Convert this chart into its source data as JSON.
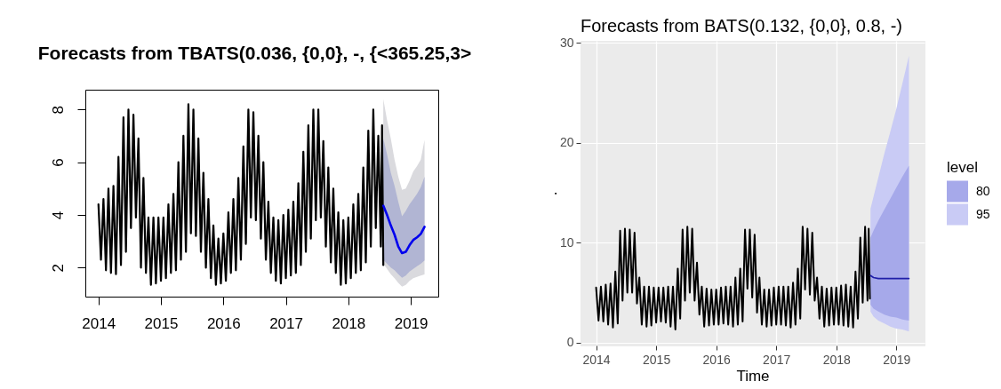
{
  "chart_data": [
    {
      "type": "line",
      "title": "Forecasts from TBATS(0.036, {0,0}, -, {<365.25,3>",
      "xlim": [
        2013.79,
        2019.44
      ],
      "xticks": [
        2014,
        2015,
        2016,
        2017,
        2018,
        2019
      ],
      "ylim": [
        0.9,
        8.75
      ],
      "yticks": [
        2,
        4,
        6,
        8
      ],
      "grid": false,
      "series": [
        {
          "type": "line",
          "color": "#000000",
          "x": [
            2014,
            2014.04,
            2014.08,
            2014.12,
            2014.16,
            2014.2,
            2014.24,
            2014.28,
            2014.32,
            2014.36,
            2014.4,
            2014.44,
            2014.48,
            2014.52,
            2014.56,
            2014.6,
            2014.64,
            2014.68,
            2014.72,
            2014.76,
            2014.8,
            2014.84,
            2014.88,
            2014.92,
            2014.96,
            2015,
            2015.04,
            2015.08,
            2015.12,
            2015.16,
            2015.2,
            2015.24,
            2015.28,
            2015.32,
            2015.36,
            2015.4,
            2015.44,
            2015.48,
            2015.52,
            2015.56,
            2015.6,
            2015.64,
            2015.68,
            2015.72,
            2015.76,
            2015.8,
            2015.84,
            2015.88,
            2015.92,
            2015.96,
            2016,
            2016.04,
            2016.08,
            2016.12,
            2016.16,
            2016.2,
            2016.24,
            2016.28,
            2016.32,
            2016.36,
            2016.4,
            2016.44,
            2016.48,
            2016.52,
            2016.56,
            2016.6,
            2016.64,
            2016.68,
            2016.72,
            2016.76,
            2016.8,
            2016.84,
            2016.88,
            2016.92,
            2016.96,
            2017,
            2017.04,
            2017.08,
            2017.12,
            2017.16,
            2017.2,
            2017.24,
            2017.28,
            2017.32,
            2017.36,
            2017.4,
            2017.44,
            2017.48,
            2017.52,
            2017.56,
            2017.6,
            2017.64,
            2017.68,
            2017.72,
            2017.76,
            2017.8,
            2017.84,
            2017.88,
            2017.92,
            2017.96,
            2018,
            2018.04,
            2018.08,
            2018.12,
            2018.16,
            2018.2,
            2018.24,
            2018.28,
            2018.32,
            2018.36,
            2018.4,
            2018.44,
            2018.48,
            2018.52,
            2018.54,
            2018.56
          ],
          "values": [
            4.4,
            2.3,
            4.6,
            1.9,
            5.0,
            1.8,
            5.1,
            1.75,
            6.2,
            2.1,
            7.7,
            2.6,
            8.0,
            3.5,
            7.8,
            3.9,
            6.9,
            2.0,
            5.4,
            1.8,
            3.9,
            1.35,
            3.9,
            1.4,
            3.9,
            1.5,
            3.9,
            1.6,
            4.4,
            1.8,
            4.8,
            1.9,
            6.0,
            2.3,
            7.0,
            2.6,
            8.2,
            3.3,
            8.0,
            3.2,
            6.9,
            2.6,
            5.6,
            2.0,
            4.6,
            1.6,
            3.6,
            1.35,
            3.1,
            1.4,
            3.3,
            1.5,
            4.1,
            1.8,
            4.6,
            1.9,
            5.4,
            2.3,
            6.6,
            2.9,
            8.0,
            3.9,
            7.9,
            3.8,
            7.0,
            3.1,
            6.0,
            2.3,
            4.5,
            1.8,
            3.9,
            1.5,
            3.8,
            1.4,
            4.0,
            1.6,
            4.2,
            1.7,
            4.5,
            1.8,
            5.2,
            2.1,
            6.4,
            2.6,
            7.4,
            3.1,
            8.0,
            3.8,
            8.0,
            3.9,
            6.8,
            2.8,
            5.8,
            2.2,
            5.0,
            1.8,
            4.1,
            1.35,
            3.8,
            1.4,
            3.9,
            1.6,
            4.4,
            1.8,
            4.8,
            1.9,
            5.8,
            2.2,
            7.2,
            2.8,
            8.0,
            3.5,
            7.0,
            2.8,
            7.4,
            2.1
          ]
        },
        {
          "type": "line",
          "color": "#0000ee",
          "x": [
            2018.56,
            2018.62,
            2018.68,
            2018.74,
            2018.8,
            2018.86,
            2018.92,
            2018.98,
            2019.04,
            2019.1,
            2019.16,
            2019.22
          ],
          "values": [
            4.35,
            4.0,
            3.6,
            3.25,
            2.8,
            2.55,
            2.6,
            2.85,
            3.05,
            3.15,
            3.28,
            3.55
          ]
        },
        {
          "type": "line",
          "color": "#b1b5d3",
          "x": [
            2018.56,
            2018.62,
            2018.68,
            2018.74,
            2018.8,
            2018.86,
            2018.92,
            2018.98,
            2019.04,
            2019.1,
            2019.16,
            2019.22
          ],
          "values": [
            null,
            null,
            null,
            null,
            null,
            null,
            null,
            null,
            null,
            null,
            null,
            null
          ],
          "lower": [
            2.3,
            2.15,
            2.0,
            1.9,
            1.75,
            1.62,
            1.7,
            1.85,
            1.95,
            2.05,
            2.15,
            2.27
          ],
          "upper": [
            6.9,
            6.3,
            5.6,
            5.1,
            4.5,
            3.95,
            4.15,
            4.4,
            4.6,
            4.8,
            5.05,
            5.45
          ]
        },
        {
          "type": "line",
          "color": "#dadade",
          "x": [
            2018.56,
            2018.62,
            2018.68,
            2018.74,
            2018.8,
            2018.86,
            2018.92,
            2018.98,
            2019.04,
            2019.1,
            2019.16,
            2019.22
          ],
          "values": [
            null,
            null,
            null,
            null,
            null,
            null,
            null,
            null,
            null,
            null,
            null,
            null
          ],
          "lower": [
            2.15,
            1.95,
            1.75,
            1.6,
            1.42,
            1.28,
            1.35,
            1.5,
            1.6,
            1.65,
            1.7,
            1.74
          ],
          "upper": [
            8.4,
            7.6,
            6.9,
            6.1,
            5.45,
            4.95,
            5.0,
            5.3,
            5.65,
            5.85,
            6.1,
            6.85
          ]
        }
      ]
    },
    {
      "type": "line",
      "title": "Forecasts from BATS(0.132, {0,0}, 0.8, -)",
      "xlabel": "Time",
      "ylabel": ".",
      "legend_title": "level",
      "legend": "right",
      "grid": true,
      "xlim": [
        2013.74,
        2019.47
      ],
      "xticks": [
        2014,
        2015,
        2016,
        2017,
        2018,
        2019
      ],
      "ylim": [
        -0.3,
        30.2
      ],
      "yticks": [
        0,
        10,
        20,
        30
      ],
      "series": [
        {
          "type": "line",
          "color": "#000000",
          "x": [
            2014,
            2014.04,
            2014.08,
            2014.12,
            2014.16,
            2014.2,
            2014.24,
            2014.28,
            2014.32,
            2014.36,
            2014.4,
            2014.44,
            2014.48,
            2014.52,
            2014.56,
            2014.6,
            2014.64,
            2014.68,
            2014.72,
            2014.76,
            2014.8,
            2014.84,
            2014.88,
            2014.92,
            2014.96,
            2015,
            2015.04,
            2015.08,
            2015.12,
            2015.16,
            2015.2,
            2015.24,
            2015.28,
            2015.32,
            2015.36,
            2015.4,
            2015.44,
            2015.48,
            2015.52,
            2015.56,
            2015.6,
            2015.64,
            2015.68,
            2015.72,
            2015.76,
            2015.8,
            2015.84,
            2015.88,
            2015.92,
            2015.96,
            2016,
            2016.04,
            2016.08,
            2016.12,
            2016.16,
            2016.2,
            2016.24,
            2016.28,
            2016.32,
            2016.36,
            2016.4,
            2016.44,
            2016.48,
            2016.52,
            2016.56,
            2016.6,
            2016.64,
            2016.68,
            2016.72,
            2016.76,
            2016.8,
            2016.84,
            2016.88,
            2016.92,
            2016.96,
            2017,
            2017.04,
            2017.08,
            2017.12,
            2017.16,
            2017.2,
            2017.24,
            2017.28,
            2017.32,
            2017.36,
            2017.4,
            2017.44,
            2017.48,
            2017.52,
            2017.56,
            2017.6,
            2017.64,
            2017.68,
            2017.72,
            2017.76,
            2017.8,
            2017.84,
            2017.88,
            2017.92,
            2017.96,
            2018,
            2018.04,
            2018.08,
            2018.12,
            2018.16,
            2018.2,
            2018.24,
            2018.28,
            2018.32,
            2018.36,
            2018.4,
            2018.44,
            2018.48,
            2018.52,
            2018.54,
            2018.56
          ],
          "values": [
            5.5,
            2.2,
            5.6,
            2.1,
            5.8,
            1.8,
            5.9,
            1.5,
            7.1,
            1.9,
            11.2,
            4.2,
            11.4,
            5.0,
            11.3,
            5.0,
            11.0,
            3.9,
            6.5,
            1.8,
            5.6,
            1.6,
            5.6,
            1.7,
            5.5,
            2.0,
            5.5,
            2.1,
            5.5,
            2.0,
            5.6,
            1.6,
            5.6,
            1.3,
            7.4,
            2.4,
            11.3,
            4.2,
            11.6,
            5.0,
            11.4,
            4.2,
            8.0,
            2.8,
            5.6,
            1.6,
            5.4,
            1.7,
            5.3,
            1.8,
            5.3,
            1.8,
            5.5,
            1.9,
            5.6,
            1.8,
            5.6,
            1.6,
            6.5,
            1.8,
            7.4,
            2.1,
            11.3,
            5.4,
            11.3,
            4.5,
            10.8,
            3.0,
            6.5,
            1.8,
            5.3,
            1.6,
            5.3,
            1.7,
            5.5,
            1.8,
            5.6,
            1.8,
            5.6,
            1.7,
            5.6,
            1.5,
            6.0,
            1.8,
            7.4,
            2.4,
            11.6,
            5.3,
            11.4,
            4.8,
            11.0,
            4.2,
            6.5,
            2.4,
            5.6,
            1.6,
            5.4,
            1.7,
            5.5,
            1.8,
            5.5,
            1.8,
            5.7,
            1.7,
            5.8,
            1.6,
            5.6,
            1.5,
            7.1,
            2.4,
            10.5,
            4.0,
            11.6,
            4.2,
            11.4,
            4.4
          ]
        },
        {
          "type": "line",
          "color": "#1f1fa8",
          "x": [
            2018.57,
            2018.62,
            2018.7,
            2018.8,
            2018.9,
            2019.0,
            2019.1,
            2019.21
          ],
          "values": [
            6.7,
            6.5,
            6.4,
            6.4,
            6.4,
            6.4,
            6.4,
            6.4
          ]
        },
        {
          "type": "line",
          "name": "80",
          "color": "#a6a9ea",
          "x": [
            2018.57,
            2018.62,
            2018.7,
            2018.8,
            2018.9,
            2019.0,
            2019.1,
            2019.21
          ],
          "values": [
            null,
            null,
            null,
            null,
            null,
            null,
            null,
            null
          ],
          "lower": [
            3.8,
            3.4,
            3.1,
            2.8,
            2.6,
            2.5,
            2.3,
            2.2
          ],
          "upper": [
            10.5,
            11.2,
            12.2,
            13.3,
            14.4,
            15.5,
            16.6,
            17.7
          ]
        },
        {
          "type": "line",
          "name": "95",
          "color": "#c9cbf5",
          "x": [
            2018.57,
            2018.62,
            2018.7,
            2018.8,
            2018.9,
            2019.0,
            2019.1,
            2019.21
          ],
          "values": [
            null,
            null,
            null,
            null,
            null,
            null,
            null,
            null
          ],
          "lower": [
            3.1,
            2.6,
            2.2,
            1.9,
            1.6,
            1.4,
            1.3,
            1.1
          ],
          "upper": [
            13.4,
            14.6,
            16.5,
            18.9,
            21.1,
            23.4,
            25.9,
            28.7
          ]
        }
      ]
    }
  ]
}
